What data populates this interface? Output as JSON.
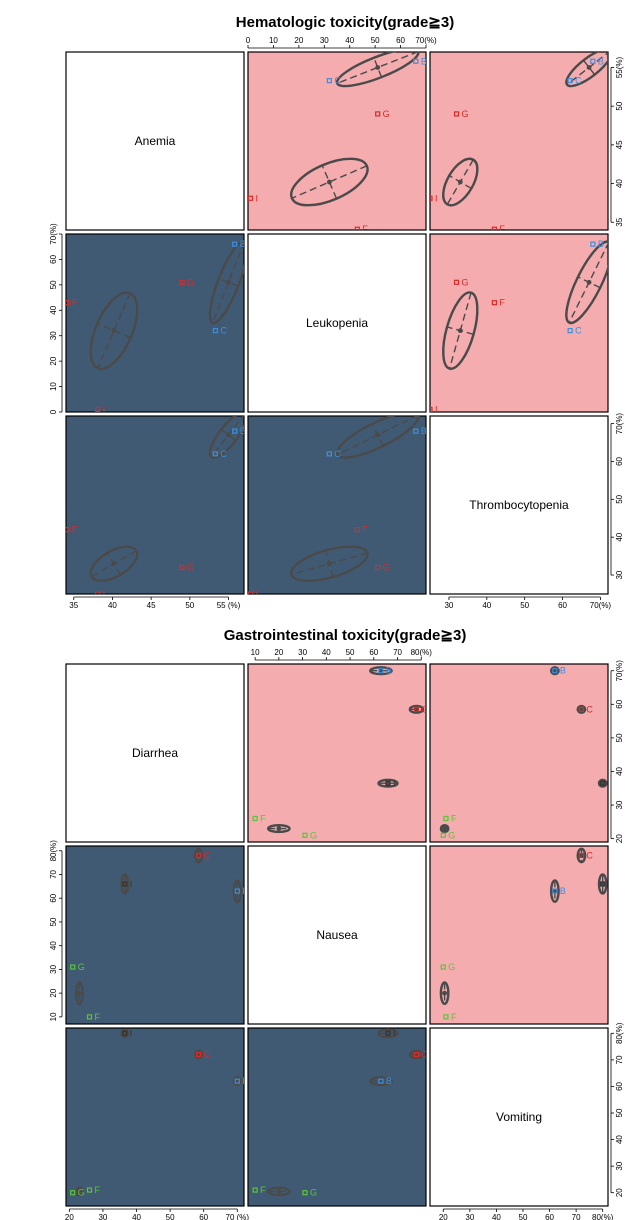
{
  "colors": {
    "upper_panel": "#f4acae",
    "lower_panel": "#415a74",
    "ellipse": "#4a4a4a",
    "label_B": "#3b8fe0",
    "label_C_blue": "#3b8fe0",
    "label_red": "#d92a2a",
    "label_green": "#5cc43a",
    "label_dark": "#333333"
  },
  "chart_data": [
    {
      "type": "scatter",
      "layout": "scatterplot-matrix",
      "title": "Hematologic toxicity(grade≧3)",
      "variables": [
        "Anemia",
        "Leukopenia",
        "Thrombocytopenia"
      ],
      "ranges": {
        "Anemia": [
          34,
          57
        ],
        "Leukopenia": [
          0,
          70
        ],
        "Thrombocytopenia": [
          25,
          72
        ]
      },
      "ticks": {
        "Anemia": [
          "35",
          "40",
          "45",
          "50",
          "55 (%)"
        ],
        "Leukopenia": [
          "0",
          "10",
          "20",
          "30",
          "40",
          "50",
          "60",
          "70(%)"
        ],
        "Thrombocytopenia": [
          "30",
          "40",
          "50",
          "60",
          "70(%)"
        ]
      },
      "tick_values": {
        "Anemia": [
          35,
          40,
          45,
          50,
          55
        ],
        "Leukopenia": [
          0,
          10,
          20,
          30,
          40,
          50,
          60,
          70
        ],
        "Thrombocytopenia": [
          30,
          40,
          50,
          60,
          70
        ]
      },
      "axis_ticks_right": {
        "Anemia": [
          "35",
          "40",
          "45",
          "50",
          "55(%)"
        ],
        "Thrombocytopenia": [
          "30",
          "40",
          "50",
          "60",
          "70(%)"
        ]
      },
      "points": [
        {
          "label": "B",
          "color": "#3b8fe0",
          "Anemia": 55.8,
          "Leukopenia": 66,
          "Thrombocytopenia": 68
        },
        {
          "label": "C",
          "color": "#3b8fe0",
          "Anemia": 53.3,
          "Leukopenia": 32,
          "Thrombocytopenia": 62
        },
        {
          "label": "G",
          "color": "#d92a2a",
          "Anemia": 49,
          "Leukopenia": 51,
          "Thrombocytopenia": 32
        },
        {
          "label": "F",
          "color": "#d92a2a",
          "Anemia": 34.1,
          "Leukopenia": 43,
          "Thrombocytopenia": 42
        },
        {
          "label": "I",
          "color": "#d92a2a",
          "Anemia": 38.1,
          "Leukopenia": 1,
          "Thrombocytopenia": 25
        }
      ],
      "ellipses": [
        {
          "group": 1,
          "means": {
            "Anemia": 55,
            "Leukopenia": 51,
            "Thrombocytopenia": 67
          },
          "sd": {
            "Anemia": 2.4,
            "Leukopenia": 16,
            "Thrombocytopenia": 6
          },
          "r": 0.8
        },
        {
          "group": 2,
          "means": {
            "Anemia": 40.2,
            "Leukopenia": 32,
            "Thrombocytopenia": 33
          },
          "sd": {
            "Anemia": 3.0,
            "Leukopenia": 15,
            "Thrombocytopenia": 4.5
          },
          "r": 0.55
        }
      ]
    },
    {
      "type": "scatter",
      "layout": "scatterplot-matrix",
      "title": "Gastrointestinal toxicity(grade≧3)",
      "variables": [
        "Diarrhea",
        "Nausea",
        "Vomiting"
      ],
      "ranges": {
        "Diarrhea": [
          19,
          72
        ],
        "Nausea": [
          7,
          82
        ],
        "Vomiting": [
          15,
          82
        ]
      },
      "ticks": {
        "Diarrhea": [
          "20",
          "30",
          "40",
          "50",
          "60",
          "70 (%)"
        ],
        "Nausea": [
          "10",
          "20",
          "30",
          "40",
          "50",
          "60",
          "70",
          "80(%)"
        ],
        "Vomiting": [
          "20",
          "30",
          "40",
          "50",
          "60",
          "70",
          "80(%)"
        ]
      },
      "tick_values": {
        "Diarrhea": [
          20,
          30,
          40,
          50,
          60,
          70
        ],
        "Nausea": [
          10,
          20,
          30,
          40,
          50,
          60,
          70,
          80
        ],
        "Vomiting": [
          20,
          30,
          40,
          50,
          60,
          70,
          80
        ]
      },
      "axis_ticks_right": {
        "Diarrhea": [
          "20",
          "30",
          "40",
          "50",
          "60",
          "70(%)"
        ],
        "Vomiting": [
          "20",
          "30",
          "40",
          "50",
          "60",
          "70",
          "80(%)"
        ]
      },
      "points": [
        {
          "label": "B",
          "color": "#3b8fe0",
          "Diarrhea": 70,
          "Nausea": 63,
          "Vomiting": 62
        },
        {
          "label": "C",
          "color": "#d92a2a",
          "Diarrhea": 58.5,
          "Nausea": 78,
          "Vomiting": 72
        },
        {
          "label": "I",
          "color": "#333333",
          "Diarrhea": 36.5,
          "Nausea": 66,
          "Vomiting": 80
        },
        {
          "label": "F",
          "color": "#5cc43a",
          "Diarrhea": 26,
          "Nausea": 10,
          "Vomiting": 21
        },
        {
          "label": "G",
          "color": "#5cc43a",
          "Diarrhea": 21,
          "Nausea": 31,
          "Vomiting": 20
        }
      ],
      "ellipses": [
        {
          "group": "B",
          "means": {
            "Diarrhea": 70,
            "Nausea": 63,
            "Vomiting": 62
          },
          "sd": {
            "Diarrhea": 1.0,
            "Nausea": 4.5,
            "Vomiting": 1.4
          },
          "r": 0
        },
        {
          "group": "C",
          "means": {
            "Diarrhea": 58.5,
            "Nausea": 78,
            "Vomiting": 72
          },
          "sd": {
            "Diarrhea": 1.0,
            "Nausea": 2.8,
            "Vomiting": 1.4
          },
          "r": 0
        },
        {
          "group": "I",
          "means": {
            "Diarrhea": 36.5,
            "Nausea": 66,
            "Vomiting": 80
          },
          "sd": {
            "Diarrhea": 1.0,
            "Nausea": 4.0,
            "Vomiting": 1.4
          },
          "r": 0
        },
        {
          "group": "FG",
          "means": {
            "Diarrhea": 23,
            "Nausea": 20,
            "Vomiting": 20.5
          },
          "sd": {
            "Diarrhea": 1.0,
            "Nausea": 4.5,
            "Vomiting": 1.4
          },
          "r": 0
        }
      ]
    }
  ]
}
